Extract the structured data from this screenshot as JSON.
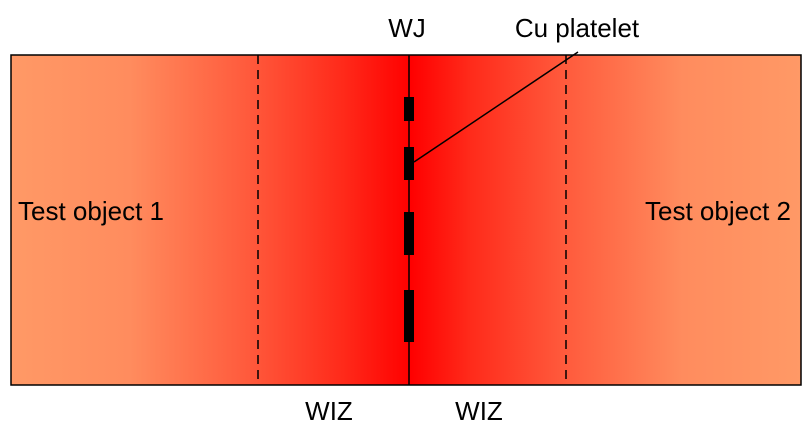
{
  "labels": {
    "weld_joint": "WJ",
    "platelet": "Cu platelet",
    "left_object": "Test object 1",
    "right_object": "Test object 2",
    "left_zone": "WIZ",
    "right_zone": "WIZ"
  },
  "colors": {
    "edge": "#ff9966",
    "center": "#ff0000",
    "line": "#000000"
  }
}
